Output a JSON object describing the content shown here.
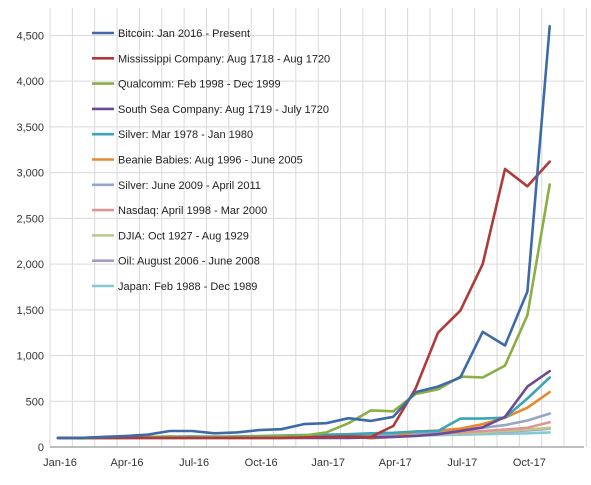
{
  "chart_data": {
    "type": "line",
    "title": "",
    "xlabel": "",
    "ylabel": "",
    "x": [
      "Jan-16",
      "Feb-16",
      "Mar-16",
      "Apr-16",
      "May-16",
      "Jun-16",
      "Jul-16",
      "Aug-16",
      "Sep-16",
      "Oct-16",
      "Nov-16",
      "Dec-16",
      "Jan-17",
      "Feb-17",
      "Mar-17",
      "Apr-17",
      "May-17",
      "Jun-17",
      "Jul-17",
      "Aug-17",
      "Sep-17",
      "Oct-17",
      "Nov-17",
      "Dec-17"
    ],
    "x_tick_labels": [
      "Jan-16",
      "Apr-16",
      "Jul-16",
      "Oct-16",
      "Jan-17",
      "Apr-17",
      "Jul-17",
      "Oct-17"
    ],
    "ylim": [
      0,
      4800
    ],
    "y_ticks": [
      0,
      500,
      1000,
      1500,
      2000,
      2500,
      3000,
      3500,
      4000,
      4500
    ],
    "y_tick_labels": [
      "0",
      "500",
      "1,000",
      "1,500",
      "2,000",
      "2,500",
      "3,000",
      "3,500",
      "4,000",
      "4,500"
    ],
    "grid": "vertical-and-horizontal",
    "legend_position": "top-left",
    "series": [
      {
        "name": "Bitcoin: Jan 2016 - Present",
        "color": "#3f6aa8",
        "values": [
          100,
          100,
          110,
          120,
          135,
          175,
          175,
          150,
          160,
          185,
          195,
          250,
          260,
          315,
          285,
          330,
          600,
          660,
          760,
          1260,
          1110,
          1700,
          4600,
          null
        ]
      },
      {
        "name": "Mississippi Company: Aug 1718 - Aug 1720",
        "color": "#b03a3a",
        "values": [
          100,
          100,
          100,
          100,
          100,
          100,
          100,
          100,
          100,
          100,
          100,
          105,
          110,
          115,
          110,
          230,
          640,
          1250,
          1490,
          2000,
          3040,
          2850,
          3120,
          null
        ]
      },
      {
        "name": "Qualcomm:  Feb 1998 - Dec 1999",
        "color": "#8cae44",
        "values": [
          100,
          95,
          100,
          105,
          110,
          115,
          105,
          110,
          110,
          115,
          120,
          125,
          160,
          260,
          400,
          390,
          580,
          630,
          770,
          760,
          890,
          1440,
          2870,
          null
        ]
      },
      {
        "name": "South Sea Company: Aug 1719 - July 1720",
        "color": "#6e4a94",
        "values": [
          100,
          100,
          100,
          100,
          100,
          100,
          100,
          100,
          100,
          100,
          100,
          100,
          100,
          100,
          105,
          110,
          120,
          140,
          175,
          215,
          330,
          660,
          830,
          null
        ]
      },
      {
        "name": "Silver: Mar 1978 - Jan 1980",
        "color": "#3aa5b5",
        "values": [
          100,
          100,
          105,
          105,
          110,
          115,
          115,
          110,
          115,
          120,
          125,
          130,
          135,
          140,
          150,
          155,
          170,
          175,
          310,
          310,
          320,
          530,
          760,
          null
        ]
      },
      {
        "name": "Beanie Babies: Aug 1996 - June 2005",
        "color": "#e8882e",
        "values": [
          100,
          100,
          100,
          105,
          105,
          110,
          110,
          110,
          115,
          110,
          115,
          120,
          125,
          115,
          95,
          110,
          170,
          180,
          200,
          250,
          320,
          430,
          600,
          null
        ]
      },
      {
        "name": "Silver: June 2009 - April 2011",
        "color": "#93a8c8",
        "values": [
          100,
          100,
          105,
          105,
          110,
          110,
          115,
          115,
          115,
          115,
          120,
          120,
          125,
          130,
          135,
          140,
          150,
          160,
          175,
          210,
          240,
          290,
          365,
          null
        ]
      },
      {
        "name": "Nasdaq: April 1998 - Mar 2000",
        "color": "#e09595",
        "values": [
          100,
          100,
          100,
          100,
          105,
          105,
          110,
          110,
          110,
          115,
          115,
          120,
          120,
          125,
          130,
          135,
          140,
          150,
          160,
          175,
          190,
          210,
          270,
          null
        ]
      },
      {
        "name": "DJIA: Oct 1927 - Aug 1929",
        "color": "#b7cc8c",
        "values": [
          100,
          100,
          100,
          100,
          105,
          105,
          105,
          110,
          110,
          110,
          115,
          115,
          120,
          120,
          125,
          130,
          135,
          140,
          150,
          160,
          175,
          190,
          210,
          null
        ]
      },
      {
        "name": "Oil: August 2006 - June 2008",
        "color": "#a79ac8",
        "values": [
          100,
          100,
          100,
          105,
          105,
          105,
          110,
          110,
          110,
          110,
          115,
          115,
          120,
          120,
          125,
          130,
          130,
          140,
          150,
          160,
          170,
          180,
          200,
          null
        ]
      },
      {
        "name": "Japan: Feb 1988 - Dec 1989",
        "color": "#86c8d4",
        "values": [
          100,
          100,
          100,
          100,
          105,
          105,
          105,
          110,
          110,
          110,
          110,
          115,
          115,
          120,
          120,
          125,
          125,
          130,
          135,
          140,
          145,
          150,
          160,
          null
        ]
      }
    ]
  }
}
